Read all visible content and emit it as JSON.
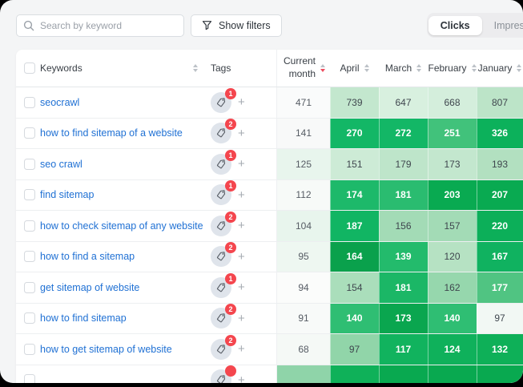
{
  "topbar": {
    "search_placeholder": "Search by keyword",
    "filters_label": "Show filters",
    "toggle": {
      "options": [
        "Clicks",
        "Impressions"
      ],
      "selected": "Clicks"
    }
  },
  "table": {
    "columns": {
      "keywords": "Keywords",
      "tags": "Tags",
      "current_month": "Current month",
      "months": [
        "April",
        "March",
        "February",
        "January"
      ]
    },
    "sort": {
      "active_column": "Current month",
      "direction": "desc"
    },
    "rows": [
      {
        "keyword": "seocrawl",
        "tag_count": 1,
        "current_month": {
          "value": 471,
          "bg": "#fafbfb"
        },
        "cells": [
          {
            "value": 739,
            "bg": "#c3e7ce",
            "text": "dark"
          },
          {
            "value": 647,
            "bg": "#d8f0df",
            "text": "dark"
          },
          {
            "value": 668,
            "bg": "#d4eedc",
            "text": "dark"
          },
          {
            "value": 807,
            "bg": "#bce4c8",
            "text": "dark"
          }
        ]
      },
      {
        "keyword": "how to find sitemap of a website",
        "tag_count": 2,
        "current_month": {
          "value": 141,
          "bg": "#f8f9f9"
        },
        "cells": [
          {
            "value": 270,
            "bg": "#13b766",
            "text": "light"
          },
          {
            "value": 272,
            "bg": "#13b766",
            "text": "light"
          },
          {
            "value": 251,
            "bg": "#41c27b",
            "text": "light"
          },
          {
            "value": 326,
            "bg": "#0cb15b",
            "text": "light"
          }
        ]
      },
      {
        "keyword": "seo crawl",
        "tag_count": 1,
        "current_month": {
          "value": 125,
          "bg": "#e8f5ed"
        },
        "cells": [
          {
            "value": 151,
            "bg": "#cdebd6",
            "text": "dark"
          },
          {
            "value": 179,
            "bg": "#bee5ca",
            "text": "dark"
          },
          {
            "value": 173,
            "bg": "#c3e7ce",
            "text": "dark"
          },
          {
            "value": 193,
            "bg": "#b2e0c0",
            "text": "dark"
          }
        ]
      },
      {
        "keyword": "find sitemap",
        "tag_count": 1,
        "current_month": {
          "value": 112,
          "bg": "#f7faf8"
        },
        "cells": [
          {
            "value": 174,
            "bg": "#1db96a",
            "text": "light"
          },
          {
            "value": 181,
            "bg": "#2abc70",
            "text": "light"
          },
          {
            "value": 203,
            "bg": "#09aa51",
            "text": "light"
          },
          {
            "value": 207,
            "bg": "#09aa51",
            "text": "light"
          }
        ]
      },
      {
        "keyword": "how to check sitemap of any website",
        "tag_count": 2,
        "current_month": {
          "value": 104,
          "bg": "#e8f5ed"
        },
        "cells": [
          {
            "value": 187,
            "bg": "#11b563",
            "text": "light"
          },
          {
            "value": 156,
            "bg": "#a3dbb6",
            "text": "dark"
          },
          {
            "value": 157,
            "bg": "#a3dbb6",
            "text": "dark"
          },
          {
            "value": 220,
            "bg": "#0caf59",
            "text": "light"
          }
        ]
      },
      {
        "keyword": "how to find a sitemap",
        "tag_count": 2,
        "current_month": {
          "value": 95,
          "bg": "#eef7f1"
        },
        "cells": [
          {
            "value": 164,
            "bg": "#0aa14c",
            "text": "light"
          },
          {
            "value": 139,
            "bg": "#23bb6c",
            "text": "light"
          },
          {
            "value": 120,
            "bg": "#b6e2c3",
            "text": "dark"
          },
          {
            "value": 167,
            "bg": "#10b260",
            "text": "light"
          }
        ]
      },
      {
        "keyword": "get sitemap of website",
        "tag_count": 1,
        "current_month": {
          "value": 94,
          "bg": "#fbfcfb"
        },
        "cells": [
          {
            "value": 154,
            "bg": "#aadebb",
            "text": "dark"
          },
          {
            "value": 181,
            "bg": "#1bb766",
            "text": "light"
          },
          {
            "value": 162,
            "bg": "#96d7ad",
            "text": "dark"
          },
          {
            "value": 177,
            "bg": "#50c482",
            "text": "light"
          }
        ]
      },
      {
        "keyword": "how to find sitemap",
        "tag_count": 2,
        "current_month": {
          "value": 91,
          "bg": "#f8faf9"
        },
        "cells": [
          {
            "value": 140,
            "bg": "#2fbe73",
            "text": "light"
          },
          {
            "value": 173,
            "bg": "#0aa64f",
            "text": "light"
          },
          {
            "value": 140,
            "bg": "#2fbe73",
            "text": "light"
          },
          {
            "value": 97,
            "bg": "#f2f8f4",
            "text": "dark"
          }
        ]
      },
      {
        "keyword": "how to get sitemap of website",
        "tag_count": 2,
        "current_month": {
          "value": 68,
          "bg": "#f5f9f6"
        },
        "cells": [
          {
            "value": 97,
            "bg": "#91d5a9",
            "text": "dark"
          },
          {
            "value": 117,
            "bg": "#11b35e",
            "text": "light"
          },
          {
            "value": 124,
            "bg": "#0fb15b",
            "text": "light"
          },
          {
            "value": 132,
            "bg": "#0eb058",
            "text": "light"
          }
        ]
      }
    ],
    "partial_row": {
      "tag_badge_visible": true,
      "current_month_bg": "#8fd4a9",
      "cell_bgs": [
        "#0fb159",
        "#09a950",
        "#09a950",
        "#09a950"
      ]
    }
  },
  "colors": {
    "accent_green": "#13b766",
    "badge_red": "#f4464e",
    "link_blue": "#2071d4",
    "sort_active_red": "#ee4b5e"
  }
}
